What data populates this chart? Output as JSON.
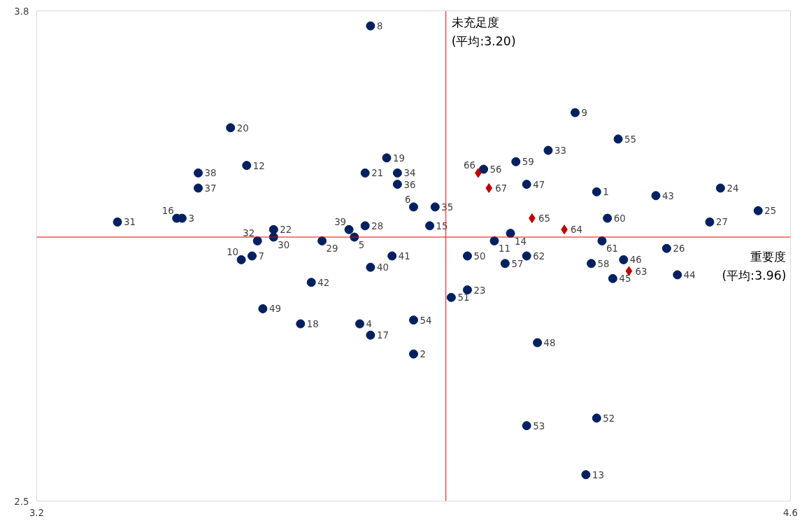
{
  "chart_data": {
    "type": "scatter",
    "xlabel": "重要度\n(平均:3.96)",
    "ylabel": "未充足度\n(平均:3.20)",
    "xlim": [
      3.2,
      4.6
    ],
    "ylim": [
      2.5,
      3.8
    ],
    "xticks": [
      3.2,
      4.6
    ],
    "yticks": [
      2.5,
      3.8
    ],
    "ref_lines": [
      {
        "axis": "x",
        "value": 3.96,
        "color": "#ff0000"
      },
      {
        "axis": "y",
        "value": 3.2,
        "color": "#ff0000"
      }
    ],
    "series": [
      {
        "color": "#002060",
        "marker": "circle",
        "x": [
          4.24,
          3.9,
          3.47,
          3.8,
          3.79,
          3.9,
          3.6,
          3.82,
          4.2,
          3.58,
          4.05,
          3.59,
          4.22,
          4.08,
          3.93,
          3.46,
          3.82,
          3.69,
          3.85,
          3.56,
          3.81,
          3.64,
          4.0,
          4.47,
          4.54,
          4.37,
          4.45,
          3.81,
          3.73,
          3.64,
          3.35,
          3.61,
          4.15,
          3.87,
          3.94,
          3.87,
          3.5,
          3.5,
          3.78,
          3.82,
          3.86,
          3.71,
          4.35,
          4.39,
          4.27,
          4.29,
          4.11,
          4.13,
          3.62,
          4.0,
          3.97,
          4.24,
          4.11,
          3.9,
          4.28,
          4.03,
          4.07,
          4.23,
          4.09,
          4.26,
          4.25,
          4.11
        ],
        "values": [
          3.32,
          2.89,
          3.25,
          2.97,
          3.2,
          3.28,
          3.15,
          3.76,
          3.53,
          3.14,
          3.19,
          3.39,
          2.57,
          3.21,
          3.23,
          3.25,
          2.94,
          2.97,
          3.41,
          3.49,
          3.37,
          3.22,
          3.06,
          3.33,
          3.27,
          3.17,
          3.24,
          3.23,
          3.19,
          3.2,
          3.24,
          3.19,
          3.43,
          3.37,
          3.28,
          3.34,
          3.33,
          3.37,
          3.22,
          3.12,
          3.15,
          3.08,
          3.31,
          3.1,
          3.09,
          3.14,
          3.34,
          2.92,
          3.01,
          3.15,
          3.04,
          2.72,
          2.7,
          2.98,
          3.46,
          3.38,
          3.13,
          3.13,
          3.4,
          3.25,
          3.19,
          3.15
        ]
      },
      {
        "color": "#c00000",
        "marker": "diamond",
        "x": [
          4.3,
          4.18,
          4.12,
          4.02,
          4.04
        ],
        "values": [
          3.11,
          3.22,
          3.25,
          3.37,
          3.33
        ]
      }
    ],
    "annotations": [
      {
        "text": "1",
        "x": 4.24,
        "y": 3.32
      },
      {
        "text": "2",
        "x": 3.9,
        "y": 2.89
      },
      {
        "text": "3",
        "x": 3.47,
        "y": 3.25
      },
      {
        "text": "4",
        "x": 3.8,
        "y": 2.97
      },
      {
        "text": "5",
        "x": 3.79,
        "y": 3.2
      },
      {
        "text": "6",
        "x": 3.9,
        "y": 3.28
      },
      {
        "text": "7",
        "x": 3.6,
        "y": 3.15
      },
      {
        "text": "8",
        "x": 3.82,
        "y": 3.76
      },
      {
        "text": "9",
        "x": 4.2,
        "y": 3.53
      },
      {
        "text": "10",
        "x": 3.58,
        "y": 3.14
      },
      {
        "text": "11",
        "x": 4.05,
        "y": 3.19
      },
      {
        "text": "12",
        "x": 3.59,
        "y": 3.39
      },
      {
        "text": "13",
        "x": 4.22,
        "y": 2.57
      },
      {
        "text": "14",
        "x": 4.08,
        "y": 3.21
      },
      {
        "text": "15",
        "x": 3.93,
        "y": 3.23
      },
      {
        "text": "16",
        "x": 3.46,
        "y": 3.25
      },
      {
        "text": "17",
        "x": 3.82,
        "y": 2.94
      },
      {
        "text": "18",
        "x": 3.69,
        "y": 2.97
      },
      {
        "text": "19",
        "x": 3.85,
        "y": 3.41
      },
      {
        "text": "20",
        "x": 3.56,
        "y": 3.49
      },
      {
        "text": "21",
        "x": 3.81,
        "y": 3.37
      },
      {
        "text": "22",
        "x": 3.64,
        "y": 3.22
      },
      {
        "text": "23",
        "x": 4.0,
        "y": 3.06
      },
      {
        "text": "24",
        "x": 4.47,
        "y": 3.33
      },
      {
        "text": "25",
        "x": 4.54,
        "y": 3.27
      },
      {
        "text": "26",
        "x": 4.37,
        "y": 3.17
      },
      {
        "text": "27",
        "x": 4.45,
        "y": 3.24
      },
      {
        "text": "28",
        "x": 3.81,
        "y": 3.23
      },
      {
        "text": "29",
        "x": 3.73,
        "y": 3.19
      },
      {
        "text": "30",
        "x": 3.64,
        "y": 3.2
      },
      {
        "text": "31",
        "x": 3.35,
        "y": 3.24
      },
      {
        "text": "32",
        "x": 3.61,
        "y": 3.19
      },
      {
        "text": "33",
        "x": 4.15,
        "y": 3.43
      },
      {
        "text": "34",
        "x": 3.87,
        "y": 3.37
      },
      {
        "text": "35",
        "x": 3.94,
        "y": 3.28
      },
      {
        "text": "36",
        "x": 3.87,
        "y": 3.34
      },
      {
        "text": "37",
        "x": 3.5,
        "y": 3.33
      },
      {
        "text": "38",
        "x": 3.5,
        "y": 3.37
      },
      {
        "text": "39",
        "x": 3.78,
        "y": 3.22
      },
      {
        "text": "40",
        "x": 3.82,
        "y": 3.12
      },
      {
        "text": "41",
        "x": 3.86,
        "y": 3.15
      },
      {
        "text": "42",
        "x": 3.71,
        "y": 3.08
      },
      {
        "text": "43",
        "x": 4.35,
        "y": 3.31
      },
      {
        "text": "44",
        "x": 4.39,
        "y": 3.1
      },
      {
        "text": "45",
        "x": 4.27,
        "y": 3.09
      },
      {
        "text": "46",
        "x": 4.29,
        "y": 3.14
      },
      {
        "text": "47",
        "x": 4.11,
        "y": 3.34
      },
      {
        "text": "48",
        "x": 4.13,
        "y": 2.92
      },
      {
        "text": "49",
        "x": 3.62,
        "y": 3.01
      },
      {
        "text": "50",
        "x": 4.0,
        "y": 3.15
      },
      {
        "text": "51",
        "x": 3.97,
        "y": 3.04
      },
      {
        "text": "52",
        "x": 4.24,
        "y": 2.72
      },
      {
        "text": "53",
        "x": 4.11,
        "y": 2.7
      },
      {
        "text": "54",
        "x": 3.9,
        "y": 2.98
      },
      {
        "text": "55",
        "x": 4.28,
        "y": 3.46
      },
      {
        "text": "56",
        "x": 4.03,
        "y": 3.38
      },
      {
        "text": "57",
        "x": 4.07,
        "y": 3.13
      },
      {
        "text": "58",
        "x": 4.23,
        "y": 3.13
      },
      {
        "text": "59",
        "x": 4.09,
        "y": 3.4
      },
      {
        "text": "60",
        "x": 4.26,
        "y": 3.25
      },
      {
        "text": "61",
        "x": 4.25,
        "y": 3.19
      },
      {
        "text": "62",
        "x": 4.11,
        "y": 3.15
      },
      {
        "text": "63",
        "x": 4.3,
        "y": 3.11
      },
      {
        "text": "64",
        "x": 4.18,
        "y": 3.22
      },
      {
        "text": "65",
        "x": 4.12,
        "y": 3.25
      },
      {
        "text": "66",
        "x": 4.02,
        "y": 3.37
      },
      {
        "text": "67",
        "x": 4.04,
        "y": 3.33
      }
    ]
  }
}
